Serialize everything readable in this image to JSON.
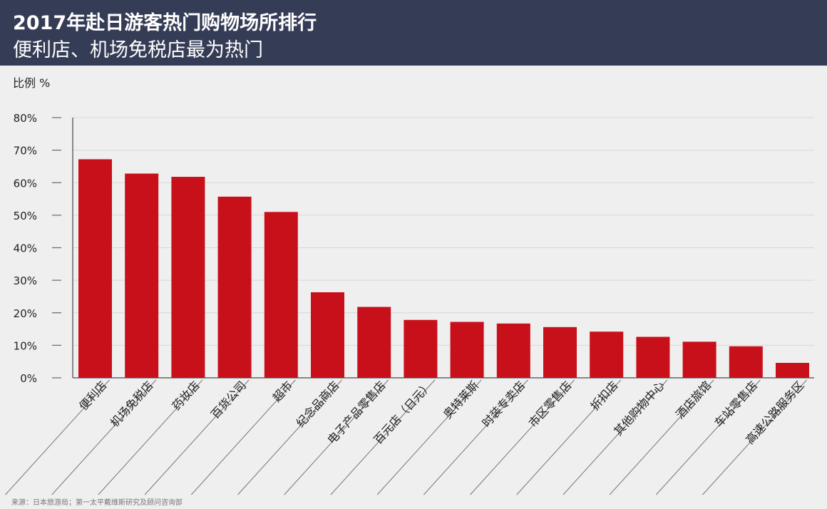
{
  "header": {
    "title": "2017年赴日游客热门购物场所排行",
    "subtitle": "便利店、机场免税店最为热门"
  },
  "source": "来源：日本旅游局；第一太平戴维斯研究及顾问咨询部",
  "colors": {
    "header_bg": "#353c56",
    "bar": "#c8101a",
    "background": "#efefef",
    "grid": "#d7d7d7"
  },
  "chart_data": {
    "type": "bar",
    "ylabel": "比例  %",
    "ylim": [
      0,
      80
    ],
    "yticks": [
      0,
      10,
      20,
      30,
      40,
      50,
      60,
      70,
      80
    ],
    "ytick_labels": [
      "0%",
      "10%",
      "20%",
      "30%",
      "40%",
      "50%",
      "60%",
      "70%",
      "80%"
    ],
    "grid": true,
    "categories": [
      "便利店",
      "机场免税店",
      "药妆店",
      "百货公司",
      "超市",
      "纪念品商店",
      "电子产品零售店",
      "百元店（日元）",
      "奥特莱斯",
      "时装专卖店",
      "市区零售店",
      "折扣店",
      "其他购物中心",
      "酒店旅馆",
      "车站零售店",
      "高速公路服务区"
    ],
    "values": [
      67.2,
      62.8,
      61.8,
      55.7,
      51.0,
      26.3,
      21.8,
      17.8,
      17.2,
      16.7,
      15.6,
      14.2,
      12.6,
      11.1,
      9.7,
      4.6
    ]
  }
}
